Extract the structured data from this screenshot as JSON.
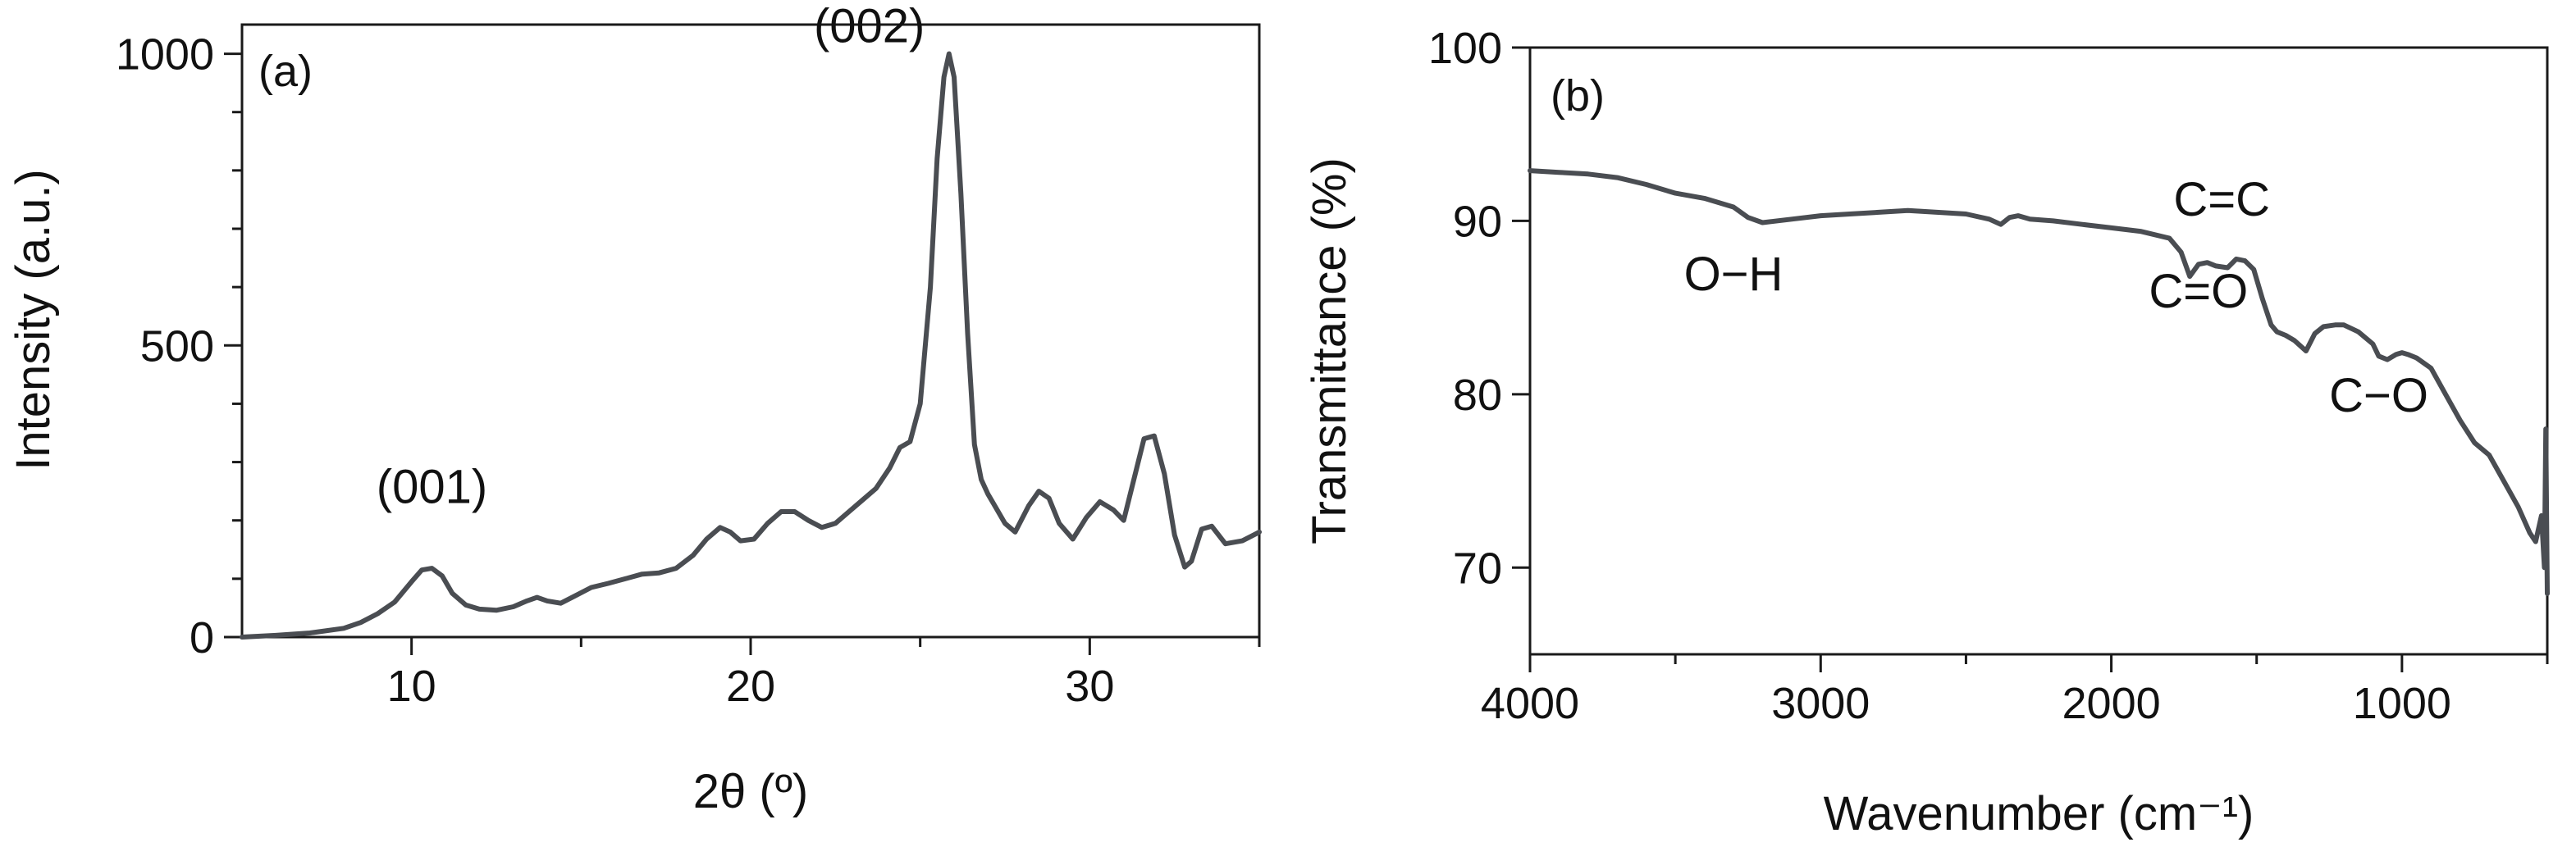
{
  "chart_data": [
    {
      "type": "line",
      "panel_label": "(a)",
      "xlabel": "2θ (º)",
      "ylabel": "Intensity (a.u.)",
      "xlim": [
        5,
        35
      ],
      "ylim": [
        0,
        1050
      ],
      "xticks": [
        10,
        20,
        30
      ],
      "yticks": [
        0,
        500,
        1000
      ],
      "grid": false,
      "series": [
        {
          "x": [
            5,
            6,
            7,
            8,
            8.5,
            9,
            9.5,
            10,
            10.3,
            10.6,
            10.9,
            11.2,
            11.6,
            12,
            12.5,
            13,
            13.4,
            13.7,
            14,
            14.4,
            14.8,
            15.3,
            15.8,
            16.3,
            16.8,
            17.3,
            17.8,
            18.3,
            18.7,
            19.1,
            19.4,
            19.7,
            20.1,
            20.5,
            20.9,
            21.3,
            21.7,
            22.1,
            22.5,
            22.9,
            23.3,
            23.7,
            24.1,
            24.4,
            24.7,
            25.0,
            25.3,
            25.5,
            25.7,
            25.85,
            26.0,
            26.2,
            26.4,
            26.6,
            26.8,
            27.0,
            27.2,
            27.5,
            27.8,
            28.2,
            28.5,
            28.8,
            29.1,
            29.5,
            29.9,
            30.3,
            30.7,
            31.0,
            31.3,
            31.6,
            31.9,
            32.2,
            32.5,
            32.8,
            33.0,
            33.3,
            33.6,
            34.0,
            34.5,
            35
          ],
          "y": [
            0,
            3,
            7,
            15,
            25,
            40,
            60,
            95,
            115,
            118,
            105,
            75,
            55,
            48,
            46,
            52,
            62,
            68,
            62,
            58,
            70,
            85,
            92,
            100,
            108,
            110,
            118,
            140,
            168,
            188,
            180,
            165,
            168,
            195,
            215,
            215,
            200,
            188,
            195,
            215,
            235,
            255,
            290,
            325,
            335,
            400,
            600,
            820,
            960,
            1000,
            960,
            760,
            520,
            330,
            270,
            245,
            225,
            195,
            180,
            225,
            250,
            238,
            195,
            168,
            205,
            232,
            218,
            200,
            270,
            340,
            345,
            280,
            175,
            120,
            130,
            185,
            190,
            160,
            165,
            180
          ]
        }
      ],
      "annotations": [
        {
          "text": "(001)",
          "x": 10.6,
          "y": 230
        },
        {
          "text": "(002)",
          "x": 23.5,
          "y": 1020
        }
      ]
    },
    {
      "type": "line",
      "panel_label": "(b)",
      "xlabel": "Wavenumber (cm⁻¹)",
      "ylabel": "Transmittance (%)",
      "xlim": [
        4000,
        500
      ],
      "ylim": [
        65,
        100
      ],
      "xticks": [
        4000,
        3000,
        2000,
        1000
      ],
      "yticks": [
        70,
        80,
        90,
        100
      ],
      "grid": false,
      "series": [
        {
          "x": [
            4000,
            3900,
            3800,
            3700,
            3600,
            3500,
            3400,
            3300,
            3250,
            3200,
            3100,
            3000,
            2900,
            2800,
            2700,
            2600,
            2500,
            2420,
            2380,
            2350,
            2320,
            2280,
            2200,
            2100,
            2000,
            1900,
            1800,
            1760,
            1730,
            1700,
            1670,
            1640,
            1600,
            1570,
            1540,
            1510,
            1480,
            1450,
            1430,
            1400,
            1370,
            1330,
            1300,
            1270,
            1230,
            1200,
            1150,
            1100,
            1080,
            1050,
            1020,
            1000,
            980,
            950,
            900,
            850,
            800,
            750,
            700,
            650,
            600,
            560,
            540,
            520,
            510,
            505,
            500
          ],
          "y": [
            92.9,
            92.8,
            92.7,
            92.5,
            92.1,
            91.6,
            91.3,
            90.8,
            90.2,
            89.9,
            90.1,
            90.3,
            90.4,
            90.5,
            90.6,
            90.5,
            90.4,
            90.1,
            89.8,
            90.2,
            90.3,
            90.1,
            90.0,
            89.8,
            89.6,
            89.4,
            89.0,
            88.2,
            86.8,
            87.5,
            87.6,
            87.4,
            87.3,
            87.8,
            87.7,
            87.2,
            85.5,
            84.0,
            83.6,
            83.4,
            83.1,
            82.5,
            83.5,
            83.9,
            84.0,
            84.0,
            83.6,
            82.9,
            82.2,
            82.0,
            82.3,
            82.4,
            82.3,
            82.1,
            81.5,
            80.0,
            78.5,
            77.2,
            76.5,
            75.0,
            73.5,
            72.0,
            71.5,
            73.0,
            70.0,
            78.0,
            68.5
          ]
        }
      ],
      "annotations": [
        {
          "text": "O−H",
          "x": 3300,
          "y": 86.0
        },
        {
          "text": "C=C",
          "x": 1620,
          "y": 90.3
        },
        {
          "text": "C=O",
          "x": 1700,
          "y": 85.0
        },
        {
          "text": "C−O",
          "x": 1080,
          "y": 79.0
        }
      ]
    }
  ]
}
